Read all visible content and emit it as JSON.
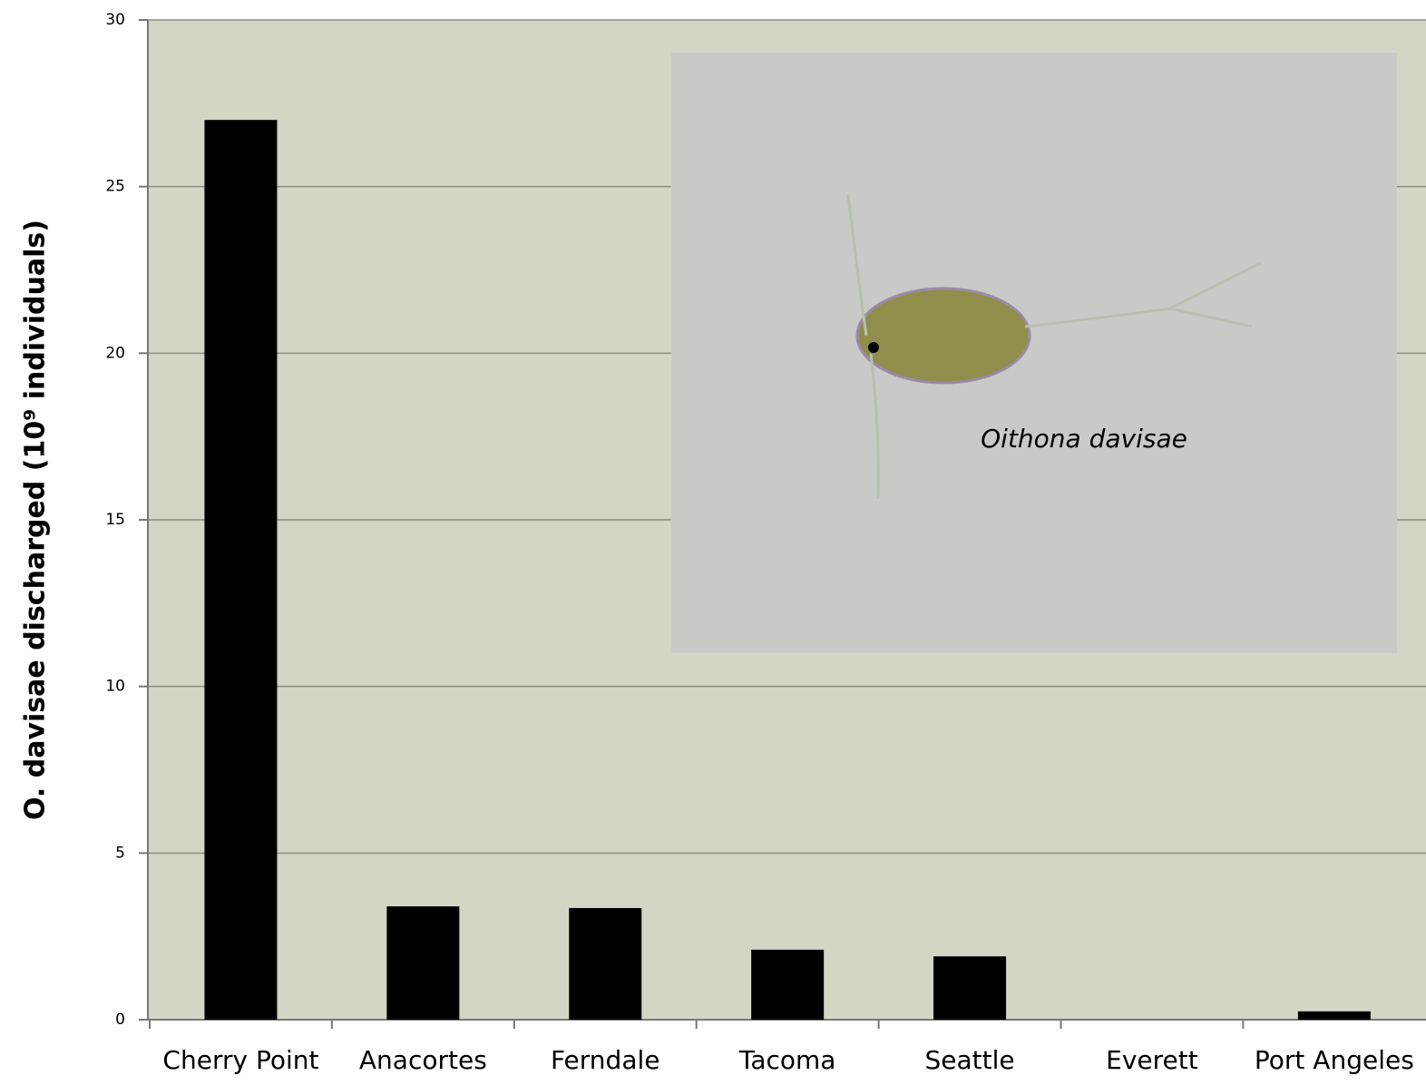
{
  "chart_data": {
    "type": "bar",
    "ylabel": "O. davisae discharged (10⁹ individuals)",
    "annotation": "Oithona davisae",
    "categories": [
      "Cherry Point",
      "Anacortes",
      "Ferndale",
      "Tacoma",
      "Seattle",
      "Everett",
      "Port Angeles"
    ],
    "values": [
      27,
      3.4,
      3.35,
      2.1,
      1.9,
      0,
      0.25
    ],
    "color": "#000000",
    "ylim": [
      0,
      30
    ],
    "yticks": [
      0,
      5,
      10,
      15,
      20,
      25,
      30
    ],
    "grid": true
  }
}
